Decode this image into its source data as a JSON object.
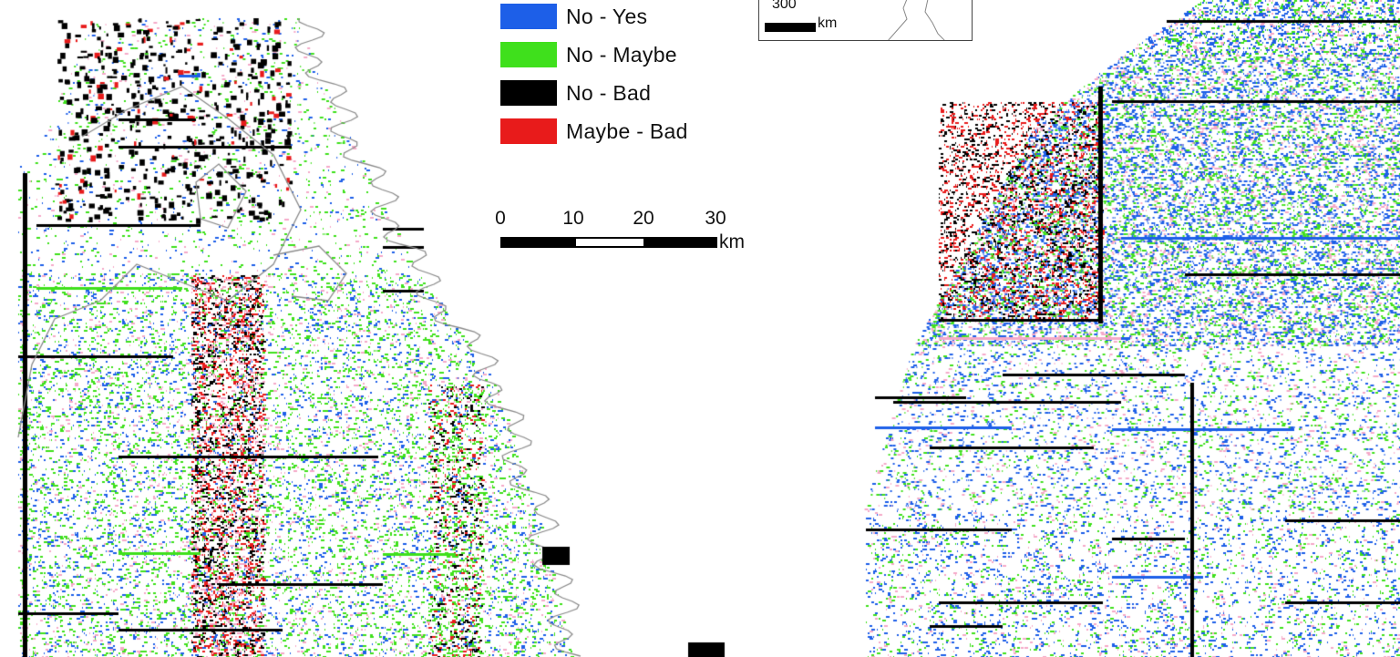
{
  "legend": {
    "items": [
      {
        "label": "No - Yes",
        "color": "#1d5fe8"
      },
      {
        "label": "No - Maybe",
        "color": "#3fe01c"
      },
      {
        "label": "No - Bad",
        "color": "#000000"
      },
      {
        "label": "Maybe - Bad",
        "color": "#e81b1b"
      }
    ]
  },
  "scalebar": {
    "ticks": [
      "0",
      "10",
      "20",
      "30"
    ],
    "unit": "km"
  },
  "inset": {
    "scale_value": "300",
    "unit": "km"
  },
  "colors": {
    "coastline": "#8a8a8a",
    "pink_noise": "#f5a9c8"
  }
}
